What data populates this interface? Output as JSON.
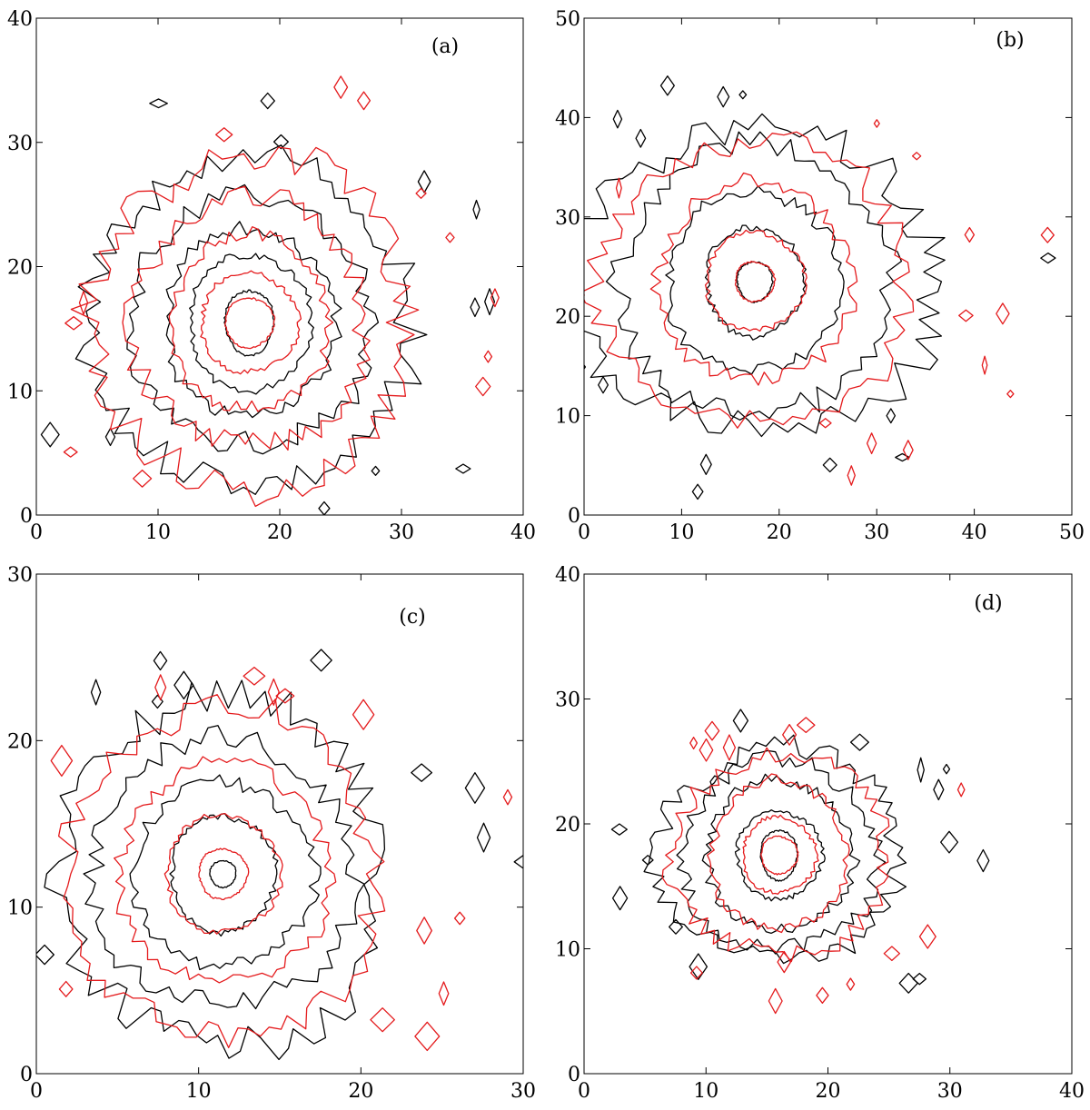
{
  "chart_data": [
    {
      "type": "contour",
      "panel_label": "(a)",
      "xlim": [
        0,
        40
      ],
      "ylim": [
        0,
        40
      ],
      "xticks": [
        0,
        10,
        20,
        30,
        40
      ],
      "yticks": [
        0,
        10,
        20,
        30,
        40
      ],
      "center": [
        17.5,
        15.5
      ],
      "series": [
        {
          "color": "#000000",
          "levels": [
            {
              "rx": 2.0,
              "ry": 2.6
            },
            {
              "rx": 5.0,
              "ry": 5.5
            },
            {
              "rx": 7.0,
              "ry": 7.5
            },
            {
              "rx": 10.0,
              "ry": 10.0
            },
            {
              "rx": 13.5,
              "ry": 13.0
            }
          ]
        },
        {
          "color": "#e41a1c",
          "levels": [
            {
              "rx": 2.0,
              "ry": 2.0
            },
            {
              "rx": 4.0,
              "ry": 4.0
            },
            {
              "rx": 6.5,
              "ry": 7.0
            },
            {
              "rx": 9.5,
              "ry": 10.0
            },
            {
              "rx": 13.0,
              "ry": 13.5
            }
          ]
        }
      ]
    },
    {
      "type": "contour",
      "panel_label": "(b)",
      "xlim": [
        0,
        50
      ],
      "ylim": [
        0,
        50
      ],
      "xticks": [
        0,
        10,
        20,
        30,
        40,
        50
      ],
      "yticks": [
        0,
        10,
        20,
        30,
        40,
        50
      ],
      "center": [
        17.5,
        23.5
      ],
      "series": [
        {
          "color": "#000000",
          "levels": [
            {
              "rx": 1.8,
              "ry": 2.0
            },
            {
              "rx": 5.0,
              "ry": 5.5
            },
            {
              "rx": 9.0,
              "ry": 9.0
            },
            {
              "rx": 14.0,
              "ry": 13.5
            },
            {
              "rx": 19.0,
              "ry": 15.0
            }
          ]
        },
        {
          "color": "#e41a1c",
          "levels": [
            {
              "rx": 2.0,
              "ry": 2.0
            },
            {
              "rx": 5.0,
              "ry": 5.0
            },
            {
              "rx": 10.0,
              "ry": 10.0
            },
            {
              "rx": 16.0,
              "ry": 14.0
            }
          ]
        }
      ]
    },
    {
      "type": "contour",
      "panel_label": "(c)",
      "xlim": [
        0,
        30
      ],
      "ylim": [
        0,
        30
      ],
      "xticks": [
        0,
        10,
        20,
        30
      ],
      "yticks": [
        0,
        10,
        20,
        30
      ],
      "center": [
        11.5,
        12.0
      ],
      "series": [
        {
          "color": "#000000",
          "levels": [
            {
              "rx": 0.8,
              "ry": 0.8
            },
            {
              "rx": 3.2,
              "ry": 3.5
            },
            {
              "rx": 5.5,
              "ry": 5.5
            },
            {
              "rx": 8.0,
              "ry": 8.0
            },
            {
              "rx": 10.0,
              "ry": 10.5
            }
          ]
        },
        {
          "color": "#e41a1c",
          "levels": [
            {
              "rx": 1.5,
              "ry": 1.5
            },
            {
              "rx": 3.5,
              "ry": 3.5
            },
            {
              "rx": 6.5,
              "ry": 6.5
            },
            {
              "rx": 9.5,
              "ry": 10.0
            }
          ]
        }
      ]
    },
    {
      "type": "contour",
      "panel_label": "(d)",
      "xlim": [
        0,
        40
      ],
      "ylim": [
        0,
        40
      ],
      "xticks": [
        0,
        10,
        20,
        30,
        40
      ],
      "yticks": [
        0,
        10,
        20,
        30,
        40
      ],
      "center": [
        16.0,
        17.5
      ],
      "series": [
        {
          "color": "#000000",
          "levels": [
            {
              "rx": 1.5,
              "ry": 2.0
            },
            {
              "rx": 3.5,
              "ry": 3.5
            },
            {
              "rx": 6.0,
              "ry": 6.0
            },
            {
              "rx": 8.0,
              "ry": 7.5
            },
            {
              "rx": 10.0,
              "ry": 8.5
            }
          ]
        },
        {
          "color": "#e41a1c",
          "levels": [
            {
              "rx": 1.5,
              "ry": 1.5
            },
            {
              "rx": 3.0,
              "ry": 3.0
            },
            {
              "rx": 5.5,
              "ry": 6.0
            },
            {
              "rx": 9.0,
              "ry": 8.0
            }
          ]
        }
      ]
    }
  ]
}
